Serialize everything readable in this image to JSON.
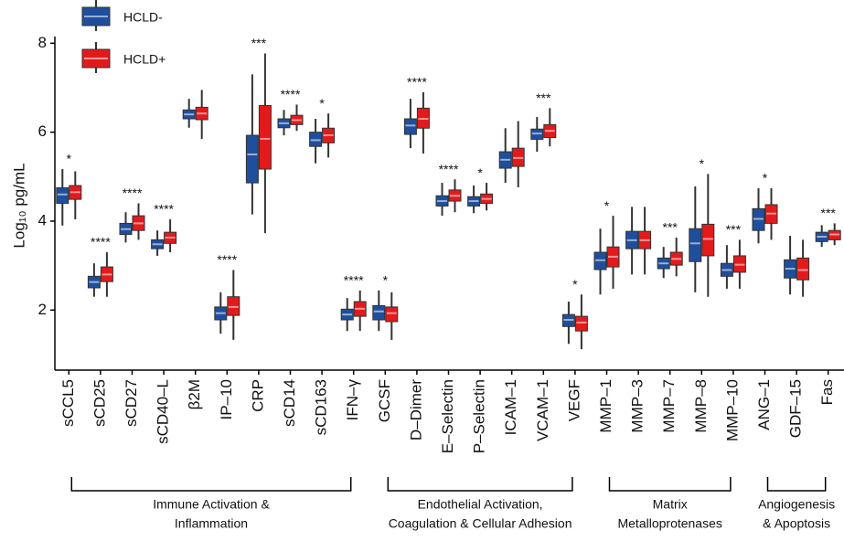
{
  "chart_data": {
    "type": "boxplot",
    "y_label": "Log₁₀ pg/mL",
    "ylim": [
      0.65,
      8.15
    ],
    "yticks": [
      2,
      4,
      6,
      8
    ],
    "legend": "top-left",
    "groups": [
      {
        "label": [
          "Immune Activation &",
          "Inflammation"
        ],
        "categories": [
          "sCCL5",
          "sCD25",
          "sCD27",
          "sCD40–L",
          "β2M",
          "IP–10",
          "CRP",
          "sCD14",
          "sCD163",
          "IFN–γ"
        ]
      },
      {
        "label": [
          "Endothelial Activation,",
          "Coagulation & Cellular Adhesion"
        ],
        "categories": [
          "GCSF",
          "D–Dimer",
          "E–Selectin",
          "P–Selectin",
          "ICAM–1",
          "VCAM–1",
          "VEGF"
        ]
      },
      {
        "label": [
          "Matrix",
          "Metalloprotenases"
        ],
        "categories": [
          "MMP–1",
          "MMP–3",
          "MMP–7",
          "MMP–8",
          "MMP–10"
        ]
      },
      {
        "label": [
          "Angiogenesis",
          "& Apoptosis"
        ],
        "categories": [
          "ANG–1",
          "GDF–15",
          "Fas"
        ]
      }
    ],
    "significance": [
      "*",
      "****",
      "****",
      "****",
      null,
      "****",
      "***",
      "****",
      "*",
      "****",
      "*",
      "****",
      "****",
      "*",
      null,
      "***",
      "*",
      "*",
      null,
      "***",
      "*",
      "***",
      "*",
      null,
      "***"
    ],
    "series": [
      {
        "name": "HCLD-",
        "color": "#1f4e9c",
        "whisker_low": [
          3.9,
          2.3,
          3.52,
          3.22,
          6.1,
          1.47,
          4.15,
          5.93,
          5.3,
          1.53,
          1.53,
          5.64,
          4.12,
          4.18,
          4.86,
          5.56,
          1.24,
          2.35,
          2.8,
          2.72,
          2.4,
          2.48,
          3.5,
          2.35,
          3.42
        ],
        "q1": [
          4.4,
          2.5,
          3.7,
          3.38,
          6.3,
          1.78,
          4.86,
          6.1,
          5.68,
          1.78,
          1.78,
          5.95,
          4.34,
          4.34,
          5.19,
          5.84,
          1.63,
          2.91,
          3.38,
          2.93,
          3.09,
          2.76,
          3.79,
          2.72,
          3.54
        ],
        "median": [
          4.6,
          2.63,
          3.82,
          3.48,
          6.4,
          1.93,
          5.5,
          6.2,
          5.82,
          1.9,
          1.97,
          6.15,
          4.45,
          4.45,
          5.38,
          5.97,
          1.78,
          3.12,
          3.57,
          3.05,
          3.5,
          2.9,
          4.05,
          2.93,
          3.65
        ],
        "q3": [
          4.75,
          2.76,
          3.95,
          3.58,
          6.5,
          2.07,
          5.93,
          6.3,
          6.0,
          2.02,
          2.1,
          6.3,
          4.57,
          4.55,
          5.56,
          6.07,
          1.9,
          3.3,
          3.77,
          3.17,
          3.83,
          3.05,
          4.28,
          3.13,
          3.75
        ],
        "whisker_high": [
          5.17,
          3.05,
          4.2,
          3.79,
          6.75,
          2.4,
          7.3,
          6.5,
          6.3,
          2.27,
          2.44,
          6.75,
          4.86,
          4.8,
          6.09,
          6.34,
          2.19,
          3.83,
          4.32,
          3.42,
          4.78,
          3.46,
          4.74,
          3.67,
          3.91
        ]
      },
      {
        "name": "HCLD+",
        "color": "#e31a1c",
        "whisker_low": [
          4.04,
          2.3,
          3.58,
          3.3,
          5.85,
          1.33,
          3.73,
          6.03,
          5.43,
          1.53,
          1.33,
          5.52,
          4.2,
          4.24,
          4.76,
          5.68,
          1.12,
          2.48,
          2.8,
          2.76,
          2.3,
          2.48,
          3.58,
          2.3,
          3.46
        ],
        "q1": [
          4.49,
          2.64,
          3.79,
          3.5,
          6.28,
          1.88,
          5.17,
          6.17,
          5.76,
          1.86,
          1.74,
          6.09,
          4.45,
          4.4,
          5.23,
          5.88,
          1.53,
          2.97,
          3.38,
          3.01,
          3.22,
          2.85,
          3.95,
          2.68,
          3.58
        ],
        "median": [
          4.65,
          2.8,
          3.95,
          3.63,
          6.42,
          2.07,
          5.85,
          6.27,
          5.93,
          2.03,
          1.93,
          6.3,
          4.57,
          4.5,
          5.42,
          6.03,
          1.72,
          3.2,
          3.57,
          3.15,
          3.6,
          3.02,
          4.17,
          2.9,
          3.7
        ],
        "q3": [
          4.8,
          2.97,
          4.12,
          3.75,
          6.56,
          2.3,
          6.6,
          6.38,
          6.09,
          2.19,
          2.07,
          6.54,
          4.7,
          4.61,
          5.64,
          6.17,
          1.86,
          3.42,
          3.77,
          3.3,
          3.93,
          3.22,
          4.37,
          3.17,
          3.79
        ],
        "whisker_high": [
          5.12,
          3.3,
          4.4,
          4.04,
          6.95,
          2.9,
          7.77,
          6.62,
          6.42,
          2.44,
          2.4,
          6.9,
          4.94,
          4.86,
          6.25,
          6.54,
          2.35,
          4.12,
          4.32,
          3.63,
          5.06,
          3.58,
          4.74,
          3.58,
          3.95
        ]
      }
    ]
  }
}
